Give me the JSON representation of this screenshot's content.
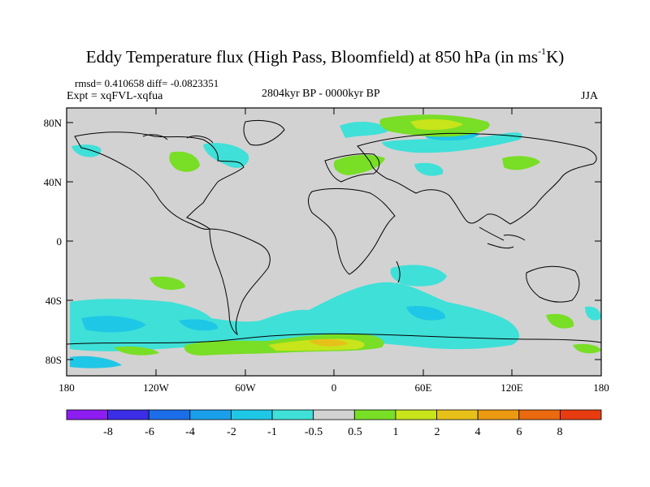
{
  "title_main": "Eddy Temperature flux (High Pass, Bloomfield) at 850 hPa (in ms",
  "title_sup": "-1",
  "title_end": "K)",
  "stats": "rmsd= 0.410658 diff= -0.0823351",
  "experiment": "Expt = xqFVL-xqfua",
  "period": "2804kyr BP - 0000kyr BP",
  "season": "JJA",
  "lat_labels": [
    "80N",
    "40N",
    "0",
    "40S",
    "80S"
  ],
  "lon_labels": [
    "180",
    "120W",
    "60W",
    "0",
    "60E",
    "120E",
    "180"
  ],
  "colorbar": {
    "labels": [
      "-8",
      "-6",
      "-4",
      "-2",
      "-1",
      "-0.5",
      "0.5",
      "1",
      "2",
      "4",
      "6",
      "8"
    ],
    "colors": [
      "#8d1df0",
      "#3c2ee6",
      "#1c6ee8",
      "#1aa0ea",
      "#1fc7e6",
      "#3fe0d8",
      "#d2d2d2",
      "#79de26",
      "#c8e41a",
      "#e7c01a",
      "#eb9a12",
      "#eb6a10",
      "#e63c10"
    ]
  },
  "colors": {
    "land_background": "#d2d2d2",
    "coastline": "#000000"
  }
}
